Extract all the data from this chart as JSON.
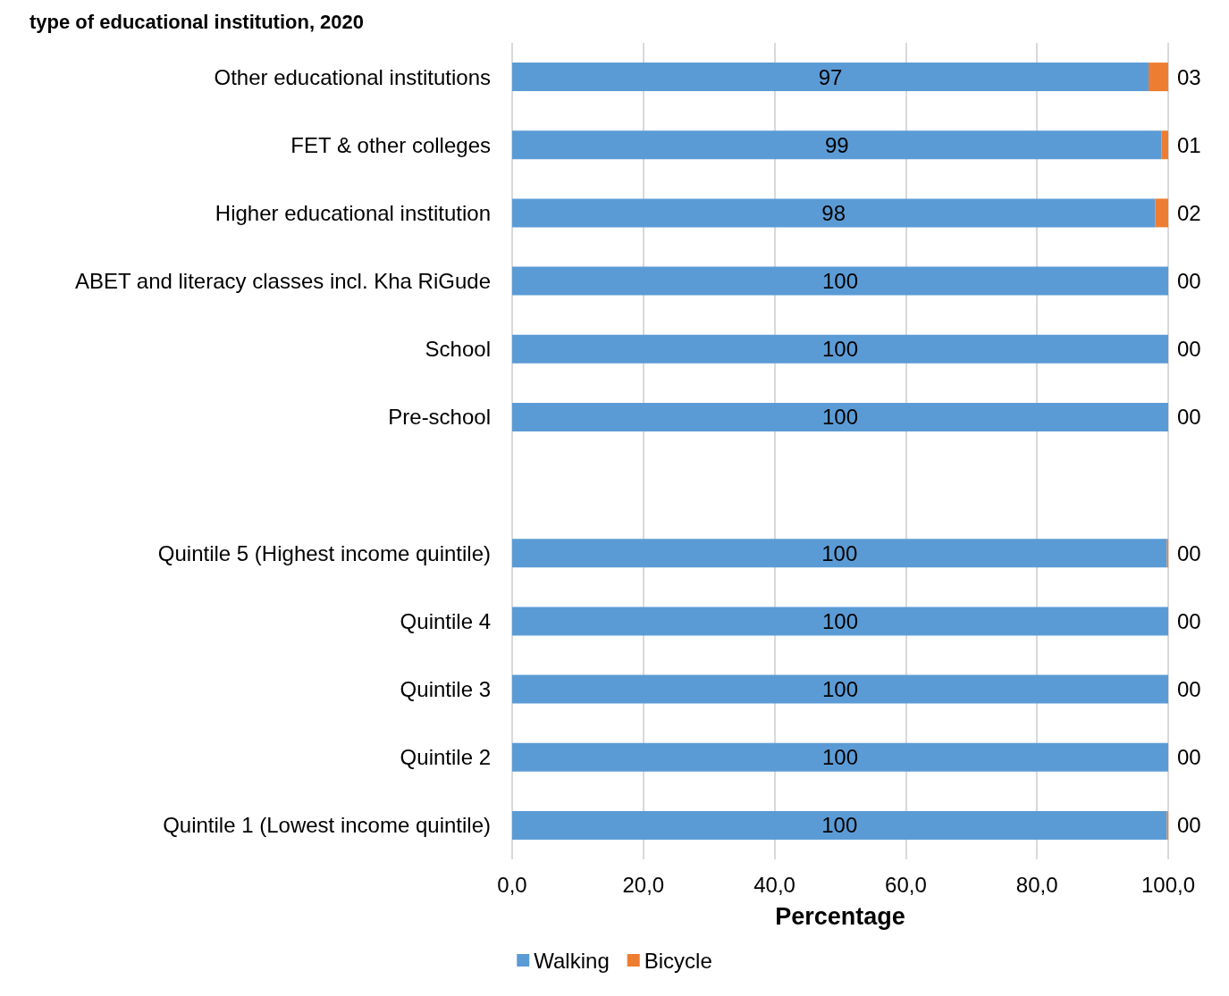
{
  "chart_data": {
    "type": "bar",
    "orientation": "horizontal",
    "stacked": true,
    "title": "type of educational institution, 2020",
    "xlabel": "Percentage",
    "categories": [
      "Other educational institutions",
      "FET & other colleges",
      "Higher educational institution",
      "ABET and literacy classes incl. Kha RiGude",
      "School",
      "Pre-school",
      null,
      "Quintile 5 (Highest income quintile)",
      "Quintile 4",
      "Quintile 3",
      "Quintile 2",
      "Quintile 1 (Lowest income quintile)"
    ],
    "series": [
      {
        "name": "Walking",
        "color": "#5b9bd5",
        "values": [
          97,
          99,
          98,
          100,
          100,
          100,
          null,
          99.8,
          100,
          100,
          100,
          99.8
        ],
        "value_labels": [
          "97",
          "99",
          "98",
          "100",
          "100",
          "100",
          null,
          "100",
          "100",
          "100",
          "100",
          "100"
        ]
      },
      {
        "name": "Bicycle",
        "color": "#ed7d31",
        "values": [
          3,
          1,
          2,
          0,
          0,
          0,
          null,
          0.2,
          0,
          0,
          0,
          0.2
        ],
        "value_labels": [
          "03",
          "01",
          "02",
          "00",
          "00",
          "00",
          null,
          "00",
          "00",
          "00",
          "00",
          "00"
        ]
      }
    ],
    "xlim": [
      0,
      100
    ],
    "xticks": [
      {
        "value": 0,
        "label": "0,0"
      },
      {
        "value": 20,
        "label": "20,0"
      },
      {
        "value": 40,
        "label": "40,0"
      },
      {
        "value": 60,
        "label": "60,0"
      },
      {
        "value": 80,
        "label": "80,0"
      },
      {
        "value": 100,
        "label": "100,0"
      }
    ],
    "grid": "x",
    "legend": "bottom"
  }
}
